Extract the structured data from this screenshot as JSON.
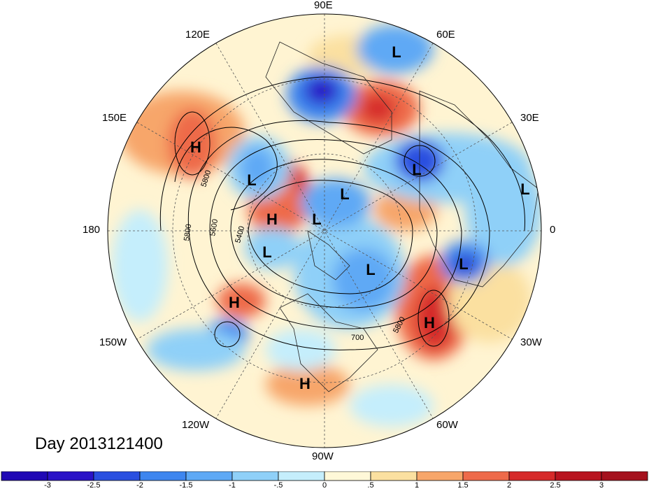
{
  "title": "Day 2013121400",
  "lon_labels": {
    "e90": "90E",
    "e60": "60E",
    "e30": "30E",
    "e0": "0",
    "w30": "30W",
    "w60": "60W",
    "w90": "90W",
    "w120": "120W",
    "w150": "150W",
    "w180": "180",
    "e150": "150E",
    "e120": "120E"
  },
  "centers": [
    {
      "type": "L"
    },
    {
      "type": "L"
    },
    {
      "type": "L"
    },
    {
      "type": "L"
    },
    {
      "type": "L"
    },
    {
      "type": "L"
    },
    {
      "type": "L"
    },
    {
      "type": "L"
    },
    {
      "type": "L"
    },
    {
      "type": "H"
    },
    {
      "type": "H"
    },
    {
      "type": "H"
    },
    {
      "type": "H"
    },
    {
      "type": "H"
    }
  ],
  "contour_labels": [
    "5800",
    "5600",
    "5400",
    "5800",
    "5800",
    "700"
  ],
  "colorbar": {
    "ticks": [
      "-3",
      "-2.5",
      "-2",
      "-1.5",
      "-1",
      "-.5",
      "0",
      ".5",
      "1",
      "1.5",
      "2",
      "2.5",
      "3"
    ],
    "colors": [
      "#2a12c7",
      "#2a4fe0",
      "#3e86ef",
      "#5ea9f5",
      "#8fd0f8",
      "#c5eefc",
      "#e9f9ff",
      "#fff8d8",
      "#fbe0a0",
      "#f7a66a",
      "#ee6a4a",
      "#d62a2a",
      "#a5111d"
    ]
  }
}
